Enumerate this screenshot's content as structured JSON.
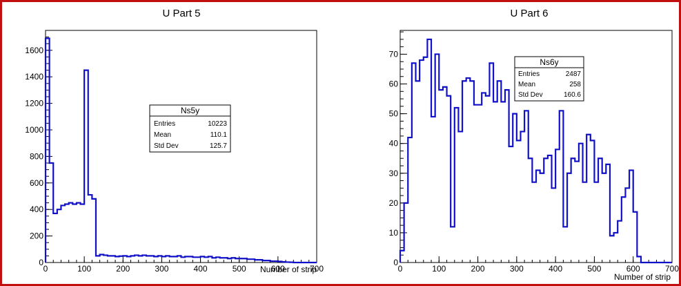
{
  "chart_data": [
    {
      "type": "histogram",
      "title": "U Part 5",
      "xlabel": "Number of strip",
      "ylabel": "",
      "xlim": [
        0,
        700
      ],
      "ylim": [
        0,
        1750
      ],
      "xticks": [
        0,
        100,
        200,
        300,
        400,
        500,
        600,
        700
      ],
      "yticks": [
        0,
        200,
        400,
        600,
        800,
        1000,
        1200,
        1400,
        1600
      ],
      "bin_width": 10,
      "values": [
        1690,
        750,
        370,
        400,
        430,
        440,
        450,
        440,
        450,
        440,
        1450,
        510,
        480,
        50,
        60,
        55,
        50,
        50,
        45,
        48,
        50,
        45,
        50,
        55,
        50,
        55,
        50,
        50,
        45,
        50,
        45,
        50,
        45,
        45,
        50,
        40,
        45,
        45,
        40,
        40,
        45,
        40,
        45,
        35,
        40,
        35,
        35,
        30,
        35,
        30,
        30,
        30,
        25,
        25,
        20,
        20,
        15,
        15,
        10,
        10,
        8,
        5,
        3,
        2,
        0,
        0,
        0,
        0,
        0,
        0
      ],
      "color": "#1010c8",
      "stats": {
        "name": "Ns5y",
        "entries_label": "Entries",
        "entries": "10223",
        "mean_label": "Mean",
        "mean": "110.1",
        "std_label": "Std Dev",
        "std": "125.7"
      }
    },
    {
      "type": "histogram",
      "title": "U Part 6",
      "xlabel": "Number of strip",
      "ylabel": "",
      "xlim": [
        0,
        700
      ],
      "ylim": [
        0,
        78
      ],
      "xticks": [
        0,
        100,
        200,
        300,
        400,
        500,
        600,
        700
      ],
      "yticks": [
        0,
        10,
        20,
        30,
        40,
        50,
        60,
        70
      ],
      "bin_width": 10,
      "values": [
        4,
        20,
        42,
        67,
        61,
        68,
        69,
        75,
        49,
        70,
        58,
        59,
        56,
        12,
        52,
        44,
        61,
        62,
        61,
        53,
        53,
        57,
        56,
        67,
        54,
        61,
        54,
        58,
        39,
        50,
        41,
        44,
        51,
        35,
        27,
        31,
        30,
        35,
        36,
        25,
        38,
        51,
        12,
        30,
        35,
        34,
        40,
        27,
        43,
        41,
        27,
        35,
        30,
        33,
        9,
        10,
        14,
        22,
        25,
        31,
        17,
        2,
        0,
        0,
        0,
        0,
        0,
        0,
        0,
        0
      ],
      "color": "#1010c8",
      "stats": {
        "name": "Ns6y",
        "entries_label": "Entries",
        "entries": "2487",
        "mean_label": "Mean",
        "mean": "258",
        "std_label": "Std Dev",
        "std": "160.6"
      }
    }
  ]
}
